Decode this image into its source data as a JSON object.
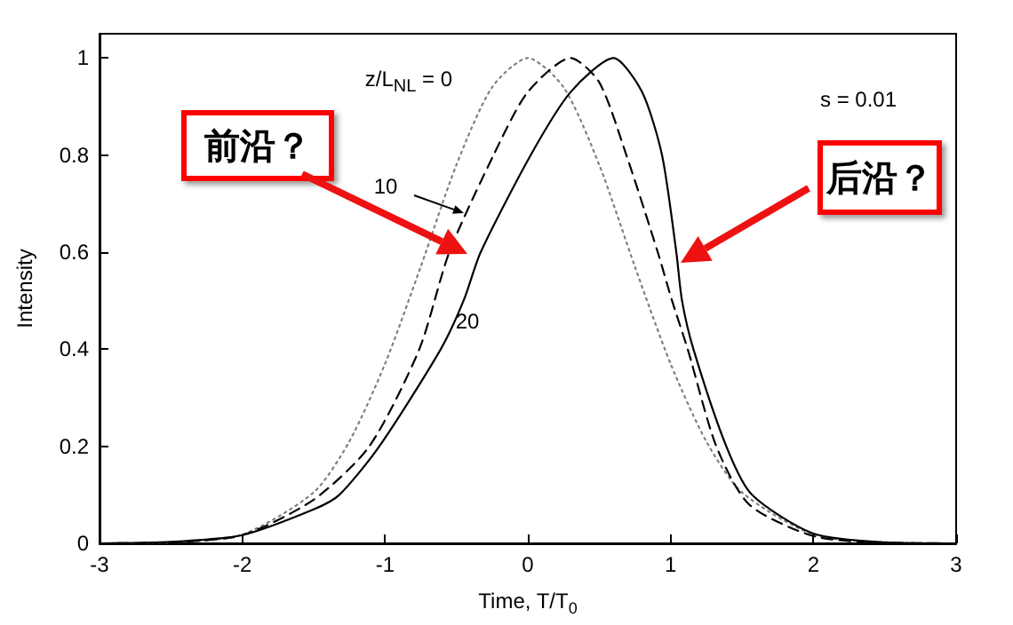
{
  "chart_data": {
    "type": "line",
    "xlabel": "Time, T/T$_{0}$",
    "ylabel": "Intensity",
    "xlim": [
      -3,
      3
    ],
    "xticks": [
      -3,
      -2,
      -1,
      0,
      1,
      2,
      3
    ],
    "ylim": [
      0,
      1.05
    ],
    "yticks": [
      0,
      0.2,
      0.4,
      0.6,
      0.8,
      1
    ],
    "grid": false,
    "marker": "none",
    "series": [
      {
        "color": "#808080",
        "line_style": "dotted",
        "x": [
          -3,
          -2.5,
          -2,
          -1.5,
          -1.25,
          -1,
          -0.75,
          -0.5,
          -0.25,
          0,
          0.25,
          0.5,
          0.75,
          1,
          1.25,
          1.5,
          2,
          2.5,
          3
        ],
        "values": [
          0,
          0.002,
          0.018,
          0.105,
          0.21,
          0.37,
          0.57,
          0.78,
          0.94,
          1,
          0.94,
          0.78,
          0.57,
          0.37,
          0.21,
          0.105,
          0.018,
          0.002,
          0
        ]
      },
      {
        "color": "#000000",
        "line_style": "dashed",
        "x": [
          -3,
          -2.5,
          -2,
          -1.5,
          -1.11,
          -0.76,
          -0.55,
          -0.24,
          0,
          0.3,
          0.5,
          0.69,
          0.91,
          1.01,
          1.12,
          1.32,
          1.55,
          2,
          2.5,
          3
        ],
        "values": [
          0,
          0.002,
          0.017,
          0.09,
          0.2,
          0.4,
          0.6,
          0.8,
          0.93,
          1,
          0.95,
          0.8,
          0.6,
          0.5,
          0.4,
          0.2,
          0.08,
          0.015,
          0.001,
          0
        ]
      },
      {
        "color": "#000000",
        "line_style": "solid",
        "x": [
          -3,
          -2.5,
          -2,
          -1.5,
          -1.32,
          -1.04,
          -0.61,
          -0.45,
          -0.33,
          0.02,
          0.3,
          0.6,
          0.8,
          0.94,
          1.04,
          1.08,
          1.16,
          1.39,
          1.57,
          2,
          2.5,
          3
        ],
        "values": [
          0,
          0.003,
          0.017,
          0.07,
          0.1,
          0.2,
          0.4,
          0.5,
          0.6,
          0.8,
          0.93,
          1,
          0.93,
          0.8,
          0.6,
          0.5,
          0.4,
          0.2,
          0.1,
          0.02,
          0.002,
          0
        ]
      }
    ],
    "annotations": [
      "z/L$_{NL}$ = 0",
      "10",
      "20",
      "s = 0.01",
      "前沿？",
      "后沿？"
    ]
  }
}
